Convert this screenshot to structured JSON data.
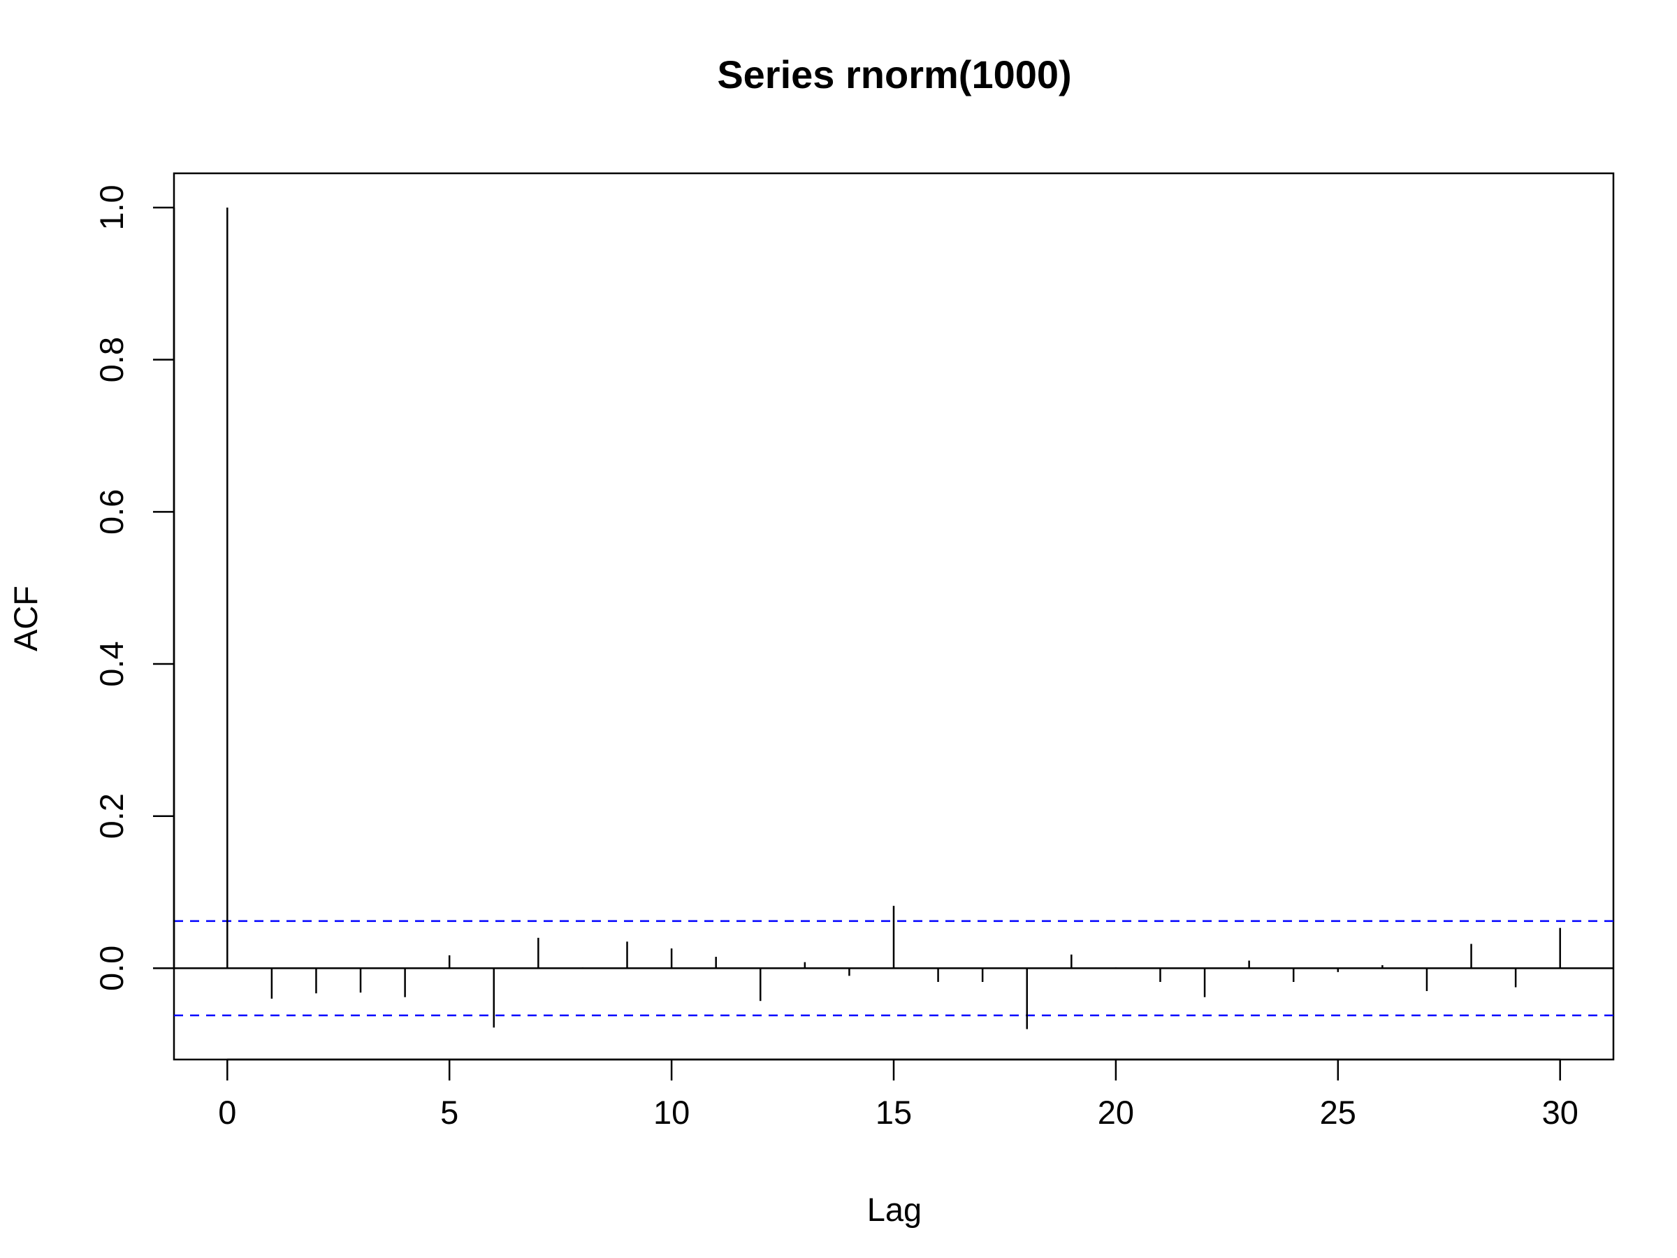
{
  "chart_data": {
    "type": "bar",
    "title": "Series  rnorm(1000)",
    "xlabel": "Lag",
    "ylabel": "ACF",
    "xlim": [
      -1.2,
      31.2
    ],
    "ylim": [
      -0.12,
      1.045
    ],
    "x_ticks": [
      0,
      5,
      10,
      15,
      20,
      25,
      30
    ],
    "x_tick_labels": [
      "0",
      "5",
      "10",
      "15",
      "20",
      "25",
      "30"
    ],
    "y_ticks": [
      0.0,
      0.2,
      0.4,
      0.6,
      0.8,
      1.0
    ],
    "y_tick_labels": [
      "0.0",
      "0.2",
      "0.4",
      "0.6",
      "0.8",
      "1.0"
    ],
    "lags": [
      0,
      1,
      2,
      3,
      4,
      5,
      6,
      7,
      8,
      9,
      10,
      11,
      12,
      13,
      14,
      15,
      16,
      17,
      18,
      19,
      20,
      21,
      22,
      23,
      24,
      25,
      26,
      27,
      28,
      29,
      30
    ],
    "acf": [
      1.0,
      -0.04,
      -0.033,
      -0.032,
      -0.038,
      0.017,
      -0.078,
      0.04,
      0.001,
      0.035,
      0.026,
      0.015,
      -0.043,
      0.008,
      -0.01,
      0.082,
      -0.018,
      -0.018,
      -0.08,
      0.018,
      0.001,
      -0.018,
      -0.038,
      0.01,
      -0.018,
      -0.005,
      0.004,
      -0.03,
      0.032,
      -0.025,
      0.053
    ],
    "confidence_bound": 0.062,
    "colors": {
      "bars": "#000000",
      "confidence_lines": "#0000ff",
      "zero_line": "#000000"
    },
    "grid": false
  }
}
